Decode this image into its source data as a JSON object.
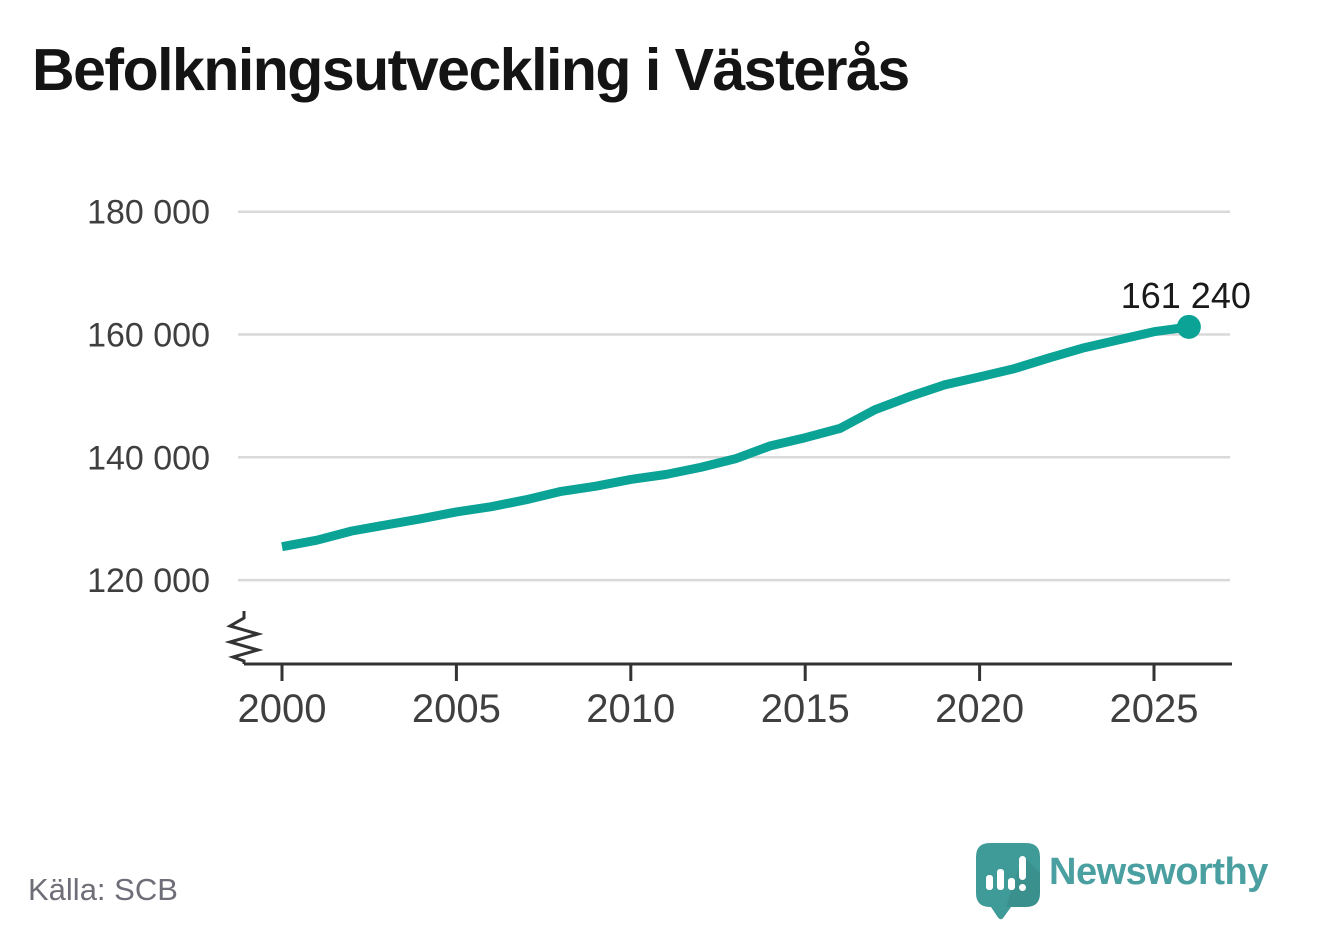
{
  "title": "Befolkningsutveckling i Västerås",
  "source": "Källa: SCB",
  "branding": {
    "logo_text": "Newsworthy",
    "logo_icon": "bar-chart-speech-bubble-icon"
  },
  "colors": {
    "line": "#0aa396",
    "grid": "#d9d9d9",
    "axis": "#333333",
    "tick_label": "#3f3f3f",
    "title": "#141414",
    "source": "#6e6e78",
    "annotation": "#1a1a1a",
    "brand_text": "#4a9fa1",
    "brand_mark": "#3f9b97"
  },
  "chart_data": {
    "type": "line",
    "title": "Befolkningsutveckling i Västerås",
    "x": [
      2000,
      2001,
      2002,
      2003,
      2004,
      2005,
      2006,
      2007,
      2008,
      2009,
      2010,
      2011,
      2012,
      2013,
      2014,
      2015,
      2016,
      2017,
      2018,
      2019,
      2020,
      2021,
      2022,
      2023,
      2024,
      2025,
      2026
    ],
    "series": [
      {
        "values": [
          125433,
          126500,
          128000,
          129000,
          130000,
          131100,
          131950,
          133100,
          134450,
          135300,
          136400,
          137200,
          138350,
          139750,
          141850,
          143200,
          144700,
          147750,
          149900,
          151800,
          153100,
          154450,
          156200,
          157850,
          159150,
          160450,
          161240
        ]
      }
    ],
    "xticks": {
      "values": [
        2000,
        2005,
        2010,
        2015,
        2020,
        2025
      ],
      "labels": [
        "2000",
        "2005",
        "2010",
        "2015",
        "2020",
        "2025"
      ]
    },
    "yticks": {
      "values": [
        120000,
        140000,
        160000,
        180000
      ],
      "labels": [
        "120 000",
        "140 000",
        "160 000",
        "180 000"
      ]
    },
    "ylabel": "",
    "xlabel": "",
    "ylim_visible": [
      115000,
      183000
    ],
    "axis_break": true,
    "grid": "horizontal",
    "legend": "none",
    "annotation": {
      "text": "161 240",
      "x": 2026,
      "y": 161240
    }
  }
}
